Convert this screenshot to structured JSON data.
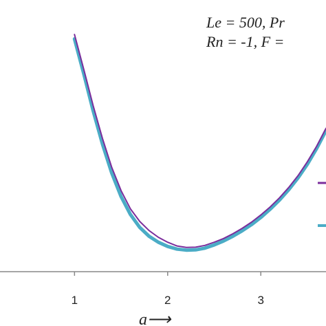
{
  "chart_data": {
    "type": "line",
    "annotation_lines": [
      "Le  = 500, Pr",
      "Rn = -1, F ="
    ],
    "xlabel": "a⟶",
    "ylabel": "",
    "x_ticks": [
      "1",
      "2",
      "3"
    ],
    "xlim": [
      0.2,
      3.7
    ],
    "ylim": [
      0,
      1
    ],
    "grid": false,
    "legend": "right, partially visible",
    "series": [
      {
        "color": "#7b2d9c",
        "x": [
          1.0,
          1.1,
          1.2,
          1.3,
          1.4,
          1.5,
          1.6,
          1.7,
          1.8,
          1.9,
          2.0,
          2.1,
          2.2,
          2.3,
          2.4,
          2.5,
          2.6,
          2.7,
          2.8,
          2.9,
          3.0,
          3.1,
          3.2,
          3.3,
          3.4,
          3.5,
          3.6,
          3.7
        ],
        "y": [
          0.958,
          0.816,
          0.671,
          0.538,
          0.421,
          0.327,
          0.254,
          0.203,
          0.166,
          0.139,
          0.119,
          0.104,
          0.098,
          0.099,
          0.106,
          0.119,
          0.134,
          0.153,
          0.175,
          0.2,
          0.229,
          0.261,
          0.298,
          0.34,
          0.388,
          0.444,
          0.507,
          0.579
        ]
      },
      {
        "color": "#4bacc6",
        "x": [
          1.0,
          1.1,
          1.2,
          1.3,
          1.4,
          1.5,
          1.6,
          1.7,
          1.8,
          1.9,
          2.0,
          2.1,
          2.2,
          2.3,
          2.4,
          2.5,
          2.6,
          2.7,
          2.8,
          2.9,
          3.0,
          3.1,
          3.2,
          3.3,
          3.4,
          3.5,
          3.6,
          3.7
        ],
        "y": [
          0.94,
          0.798,
          0.65,
          0.515,
          0.398,
          0.303,
          0.231,
          0.179,
          0.143,
          0.119,
          0.102,
          0.091,
          0.087,
          0.088,
          0.095,
          0.108,
          0.124,
          0.143,
          0.165,
          0.19,
          0.219,
          0.252,
          0.289,
          0.331,
          0.379,
          0.434,
          0.498,
          0.57
        ]
      }
    ]
  }
}
